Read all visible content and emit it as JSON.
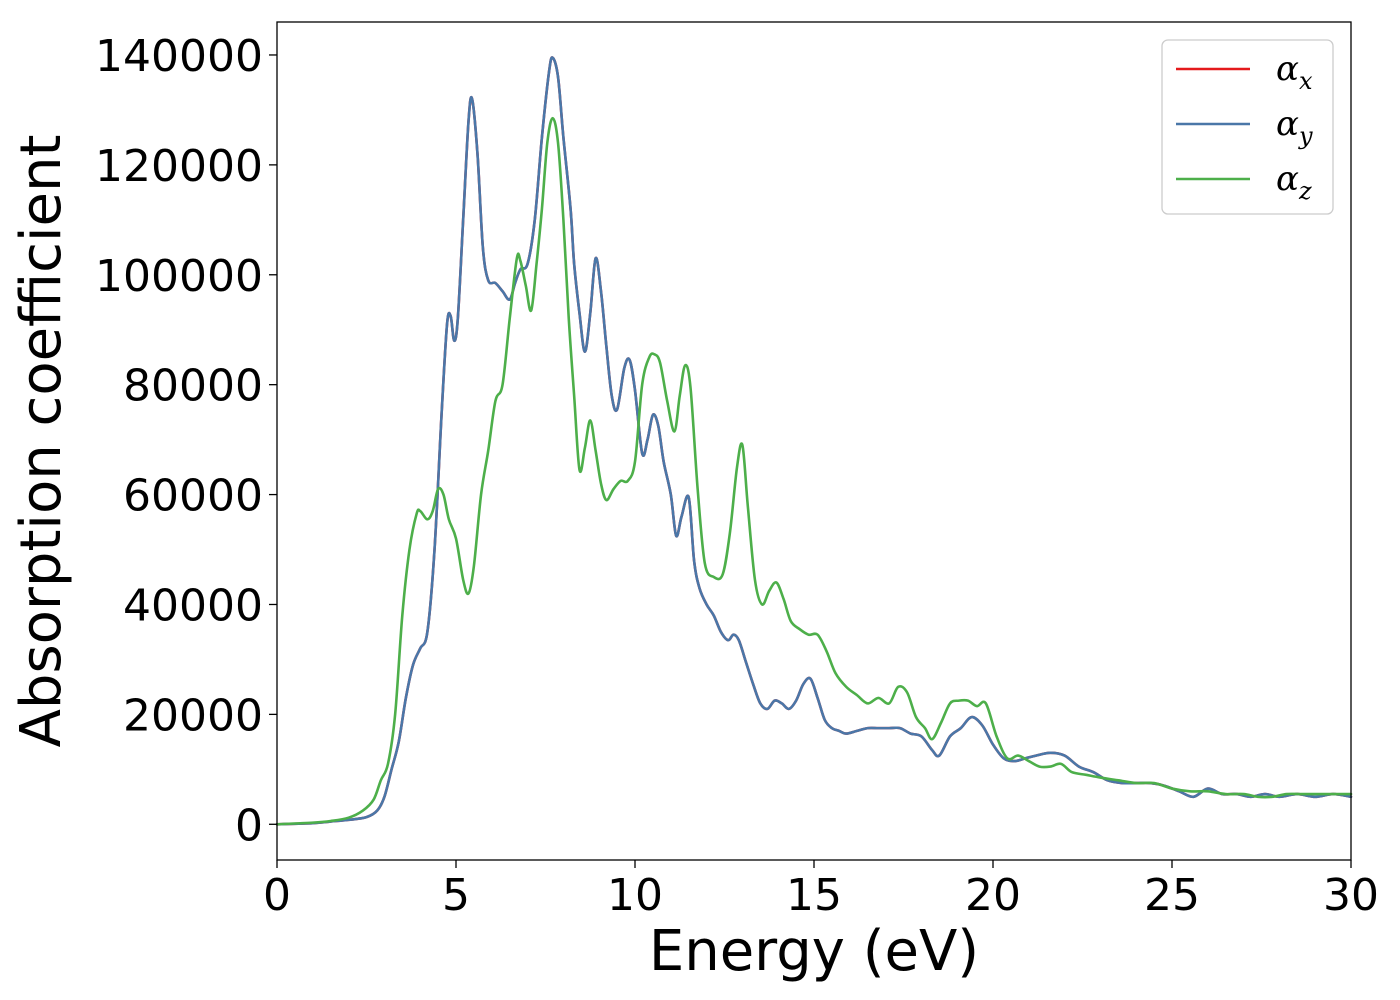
{
  "chart_data": {
    "type": "line",
    "title": "",
    "xlabel": "Energy (eV)",
    "ylabel": "Absorption coefficient",
    "xlim": [
      0,
      30
    ],
    "ylim": [
      -6500,
      146000
    ],
    "xticks": [
      0,
      5,
      10,
      15,
      20,
      25,
      30
    ],
    "xtick_labels": [
      "0",
      "5",
      "10",
      "15",
      "20",
      "25",
      "30"
    ],
    "yticks": [
      0,
      20000,
      40000,
      60000,
      80000,
      100000,
      120000,
      140000
    ],
    "ytick_labels": [
      "0",
      "20000",
      "40000",
      "60000",
      "80000",
      "100000",
      "120000",
      "140000"
    ],
    "grid": false,
    "legend_position": "top-right",
    "series": [
      {
        "name": "αx",
        "symbol": "α",
        "subscript": "x",
        "color": "#e41a1c",
        "x": [
          0,
          1,
          1.5,
          2,
          2.5,
          2.8,
          3.0,
          3.2,
          3.4,
          3.6,
          3.8,
          4.0,
          4.2,
          4.4,
          4.6,
          4.75,
          4.85,
          4.95,
          5.05,
          5.2,
          5.35,
          5.45,
          5.6,
          5.75,
          5.9,
          6.1,
          6.3,
          6.5,
          6.65,
          6.8,
          7.0,
          7.2,
          7.4,
          7.6,
          7.7,
          7.85,
          8.0,
          8.2,
          8.3,
          8.45,
          8.6,
          8.75,
          8.9,
          9.05,
          9.2,
          9.35,
          9.5,
          9.7,
          9.85,
          10.0,
          10.2,
          10.35,
          10.5,
          10.65,
          10.8,
          11.0,
          11.15,
          11.3,
          11.5,
          11.65,
          11.8,
          12.0,
          12.2,
          12.4,
          12.6,
          12.75,
          12.9,
          13.1,
          13.3,
          13.5,
          13.7,
          13.9,
          14.1,
          14.3,
          14.5,
          14.7,
          14.9,
          15.1,
          15.3,
          15.5,
          15.7,
          15.9,
          16.2,
          16.5,
          16.8,
          17.1,
          17.4,
          17.7,
          18.0,
          18.3,
          18.5,
          18.8,
          19.1,
          19.4,
          19.7,
          20.0,
          20.3,
          20.6,
          20.9,
          21.2,
          21.6,
          22.0,
          22.4,
          22.8,
          23.2,
          23.6,
          24.0,
          24.4,
          24.8,
          25.2,
          25.6,
          26.0,
          26.4,
          26.8,
          27.2,
          27.6,
          28.0,
          28.5,
          29.0,
          29.5,
          30.0
        ],
        "y": [
          0,
          200,
          500,
          800,
          1300,
          2500,
          5000,
          10000,
          15000,
          23000,
          29000,
          32000,
          35000,
          50000,
          75000,
          91000,
          92500,
          88000,
          92000,
          110000,
          128000,
          132000,
          122000,
          105000,
          99000,
          98500,
          97000,
          95500,
          98500,
          101000,
          102000,
          110000,
          125000,
          137000,
          139500,
          136000,
          125000,
          112000,
          102000,
          93000,
          86000,
          93000,
          103000,
          97000,
          87000,
          78000,
          75500,
          83000,
          84500,
          79000,
          67500,
          70000,
          74500,
          72500,
          66000,
          60000,
          52500,
          56000,
          59500,
          48000,
          43000,
          40000,
          38000,
          35000,
          33500,
          34500,
          33500,
          29500,
          25500,
          22000,
          21000,
          22500,
          22000,
          21000,
          22500,
          25500,
          26500,
          23000,
          19000,
          17500,
          17000,
          16500,
          17000,
          17500,
          17500,
          17500,
          17500,
          16500,
          16000,
          13500,
          12500,
          16000,
          17500,
          19500,
          18000,
          14500,
          12000,
          11500,
          12000,
          12500,
          13000,
          12500,
          10500,
          9500,
          8000,
          7500,
          7500,
          7500,
          7000,
          6000,
          5000,
          6500,
          5500,
          5500,
          5000,
          5500,
          5000,
          5500,
          5000,
          5500,
          5000
        ]
      },
      {
        "name": "αy",
        "symbol": "α",
        "subscript": "y",
        "color": "#4a77a8",
        "x": [
          0,
          1,
          1.5,
          2,
          2.5,
          2.8,
          3.0,
          3.2,
          3.4,
          3.6,
          3.8,
          4.0,
          4.2,
          4.4,
          4.6,
          4.75,
          4.85,
          4.95,
          5.05,
          5.2,
          5.35,
          5.45,
          5.6,
          5.75,
          5.9,
          6.1,
          6.3,
          6.5,
          6.65,
          6.8,
          7.0,
          7.2,
          7.4,
          7.6,
          7.7,
          7.85,
          8.0,
          8.2,
          8.3,
          8.45,
          8.6,
          8.75,
          8.9,
          9.05,
          9.2,
          9.35,
          9.5,
          9.7,
          9.85,
          10.0,
          10.2,
          10.35,
          10.5,
          10.65,
          10.8,
          11.0,
          11.15,
          11.3,
          11.5,
          11.65,
          11.8,
          12.0,
          12.2,
          12.4,
          12.6,
          12.75,
          12.9,
          13.1,
          13.3,
          13.5,
          13.7,
          13.9,
          14.1,
          14.3,
          14.5,
          14.7,
          14.9,
          15.1,
          15.3,
          15.5,
          15.7,
          15.9,
          16.2,
          16.5,
          16.8,
          17.1,
          17.4,
          17.7,
          18.0,
          18.3,
          18.5,
          18.8,
          19.1,
          19.4,
          19.7,
          20.0,
          20.3,
          20.6,
          20.9,
          21.2,
          21.6,
          22.0,
          22.4,
          22.8,
          23.2,
          23.6,
          24.0,
          24.4,
          24.8,
          25.2,
          25.6,
          26.0,
          26.4,
          26.8,
          27.2,
          27.6,
          28.0,
          28.5,
          29.0,
          29.5,
          30.0
        ],
        "y": [
          0,
          200,
          500,
          800,
          1300,
          2500,
          5000,
          10000,
          15000,
          23000,
          29000,
          32000,
          35000,
          50000,
          75000,
          91000,
          92500,
          88000,
          92000,
          110000,
          128000,
          132000,
          122000,
          105000,
          99000,
          98500,
          97000,
          95500,
          98500,
          101000,
          102000,
          110000,
          125000,
          137000,
          139500,
          136000,
          125000,
          112000,
          102000,
          93000,
          86000,
          93000,
          103000,
          97000,
          87000,
          78000,
          75500,
          83000,
          84500,
          79000,
          67500,
          70000,
          74500,
          72500,
          66000,
          60000,
          52500,
          56000,
          59500,
          48000,
          43000,
          40000,
          38000,
          35000,
          33500,
          34500,
          33500,
          29500,
          25500,
          22000,
          21000,
          22500,
          22000,
          21000,
          22500,
          25500,
          26500,
          23000,
          19000,
          17500,
          17000,
          16500,
          17000,
          17500,
          17500,
          17500,
          17500,
          16500,
          16000,
          13500,
          12500,
          16000,
          17500,
          19500,
          18000,
          14500,
          12000,
          11500,
          12000,
          12500,
          13000,
          12500,
          10500,
          9500,
          8000,
          7500,
          7500,
          7500,
          7000,
          6000,
          5000,
          6500,
          5500,
          5500,
          5000,
          5500,
          5000,
          5500,
          5000,
          5500,
          5000
        ]
      },
      {
        "name": "αz",
        "symbol": "α",
        "subscript": "z",
        "color": "#4daf4a",
        "x": [
          0,
          1,
          1.5,
          2,
          2.4,
          2.7,
          2.9,
          3.1,
          3.3,
          3.5,
          3.7,
          3.9,
          4.0,
          4.2,
          4.35,
          4.5,
          4.65,
          4.8,
          5.0,
          5.2,
          5.35,
          5.5,
          5.7,
          5.9,
          6.1,
          6.3,
          6.5,
          6.7,
          6.8,
          6.95,
          7.1,
          7.25,
          7.4,
          7.55,
          7.7,
          7.85,
          8.0,
          8.15,
          8.3,
          8.45,
          8.6,
          8.75,
          8.9,
          9.05,
          9.2,
          9.4,
          9.6,
          9.8,
          10.0,
          10.2,
          10.4,
          10.55,
          10.7,
          10.9,
          11.1,
          11.25,
          11.4,
          11.55,
          11.75,
          11.95,
          12.2,
          12.45,
          12.65,
          12.85,
          13.0,
          13.15,
          13.35,
          13.55,
          13.75,
          13.95,
          14.15,
          14.35,
          14.6,
          14.85,
          15.1,
          15.35,
          15.6,
          15.9,
          16.2,
          16.5,
          16.8,
          17.1,
          17.35,
          17.6,
          17.85,
          18.1,
          18.3,
          18.55,
          18.8,
          19.05,
          19.3,
          19.55,
          19.8,
          20.1,
          20.4,
          20.7,
          21.0,
          21.3,
          21.6,
          21.9,
          22.2,
          22.6,
          23.0,
          23.5,
          24.0,
          24.5,
          25.0,
          25.5,
          26.0,
          26.5,
          27.0,
          27.4,
          27.8,
          28.2,
          28.6,
          29.0,
          29.5,
          30.0
        ],
        "y": [
          0,
          300,
          600,
          1200,
          2500,
          4500,
          8000,
          11000,
          20000,
          38000,
          50000,
          56500,
          57000,
          55500,
          57000,
          61000,
          60000,
          55500,
          52000,
          44500,
          42000,
          47000,
          60000,
          68000,
          77000,
          80000,
          92000,
          103000,
          102500,
          98000,
          93500,
          102000,
          112000,
          124000,
          128500,
          124000,
          110000,
          92000,
          78000,
          64500,
          68500,
          73500,
          68000,
          62000,
          59000,
          61000,
          62500,
          62500,
          66000,
          80000,
          85000,
          85500,
          84000,
          77000,
          71500,
          78000,
          83500,
          79500,
          61000,
          47500,
          45000,
          45500,
          53000,
          65000,
          69000,
          58000,
          44500,
          40000,
          42500,
          44000,
          41000,
          37000,
          35500,
          34500,
          34500,
          31500,
          27500,
          25000,
          23500,
          22000,
          23000,
          22000,
          25000,
          24000,
          19500,
          17500,
          15500,
          18500,
          22000,
          22500,
          22500,
          21500,
          22000,
          16000,
          12000,
          12500,
          11500,
          10500,
          10500,
          11000,
          9500,
          9000,
          8500,
          8000,
          7500,
          7500,
          6500,
          6000,
          6000,
          5500,
          5500,
          5000,
          5000,
          5500,
          5500,
          5500,
          5500,
          5500
        ]
      }
    ]
  }
}
